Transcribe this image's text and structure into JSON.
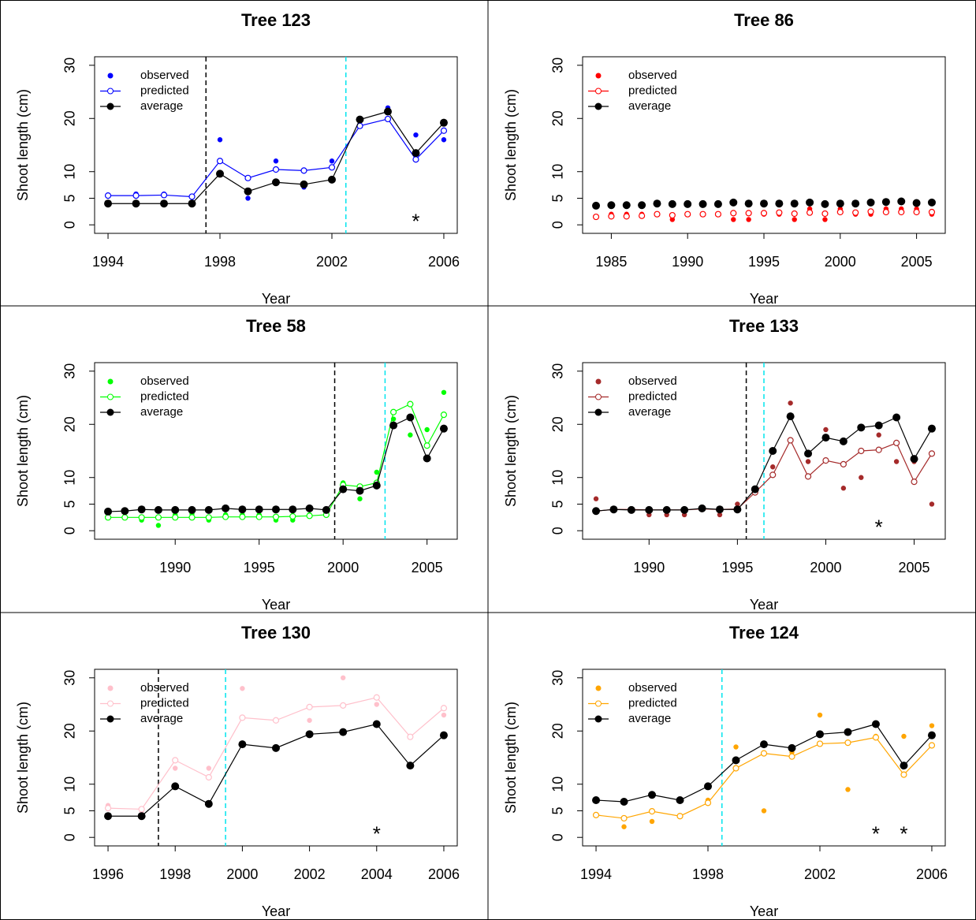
{
  "chart_data": [
    {
      "type": "line",
      "title": "Tree  123",
      "x_label": "Year",
      "y_label": "Shoot length (cm)",
      "x": [
        1994,
        1995,
        1996,
        1997,
        1998,
        1999,
        2000,
        2001,
        2002,
        2003,
        2004,
        2005,
        2006
      ],
      "series": [
        {
          "name": "observed",
          "color": "#0000ff",
          "values": [
            5.6,
            5.8,
            5.8,
            5.2,
            16,
            5,
            12,
            7.1,
            12,
            19.5,
            22,
            16.9,
            16
          ]
        },
        {
          "name": "predicted",
          "color": "#0000ff",
          "values": [
            5.5,
            5.5,
            5.6,
            5.3,
            12,
            8.8,
            10.4,
            10.2,
            10.8,
            18.6,
            19.9,
            12.3,
            17.7
          ]
        },
        {
          "name": "average",
          "color": "#000000",
          "values": [
            4,
            4,
            4,
            4,
            9.6,
            6.3,
            8,
            7.6,
            8.5,
            19.8,
            21.3,
            13.5,
            19.2
          ]
        }
      ],
      "xlim": [
        1993.52,
        2006.48
      ],
      "ylim": [
        -1.6,
        31.6
      ],
      "xticks": [
        1994,
        1998,
        2002,
        2006
      ],
      "yticks": [
        0,
        5,
        10,
        20,
        30
      ],
      "vlines": [
        {
          "x": 1997.5,
          "color": "#000000"
        },
        {
          "x": 2002.5,
          "color": "#00e5ee"
        }
      ],
      "annotations": [
        {
          "text": "*",
          "x": 2005,
          "y": 1
        }
      ],
      "lines": true
    },
    {
      "type": "line",
      "title": "Tree  86",
      "x_label": "Year",
      "y_label": "Shoot length (cm)",
      "x": [
        1984,
        1985,
        1986,
        1987,
        1988,
        1989,
        1990,
        1991,
        1992,
        1993,
        1994,
        1995,
        1996,
        1997,
        1998,
        1999,
        2000,
        2001,
        2002,
        2003,
        2004,
        2005,
        2006
      ],
      "series": [
        {
          "name": "observed",
          "color": "#ff0000",
          "values": [
            3.8,
            2,
            2,
            2,
            2,
            1,
            2,
            2,
            2,
            1,
            1,
            2,
            2,
            1,
            3,
            1,
            3,
            2,
            2,
            3,
            3,
            3,
            2
          ]
        },
        {
          "name": "predicted",
          "color": "#ff0000",
          "values": [
            1.5,
            1.6,
            1.6,
            1.7,
            2,
            1.8,
            2,
            2,
            2,
            2.2,
            2.2,
            2.2,
            2.3,
            2.1,
            2.3,
            2.1,
            2.4,
            2.3,
            2.5,
            2.4,
            2.4,
            2.4,
            2.4
          ]
        },
        {
          "name": "average",
          "color": "#000000",
          "values": [
            3.6,
            3.7,
            3.7,
            3.7,
            4,
            3.9,
            3.9,
            3.9,
            3.9,
            4.2,
            4,
            4,
            4,
            4,
            4.2,
            3.9,
            4,
            4,
            4.2,
            4.3,
            4.4,
            4.1,
            4.2
          ]
        }
      ],
      "xlim": [
        1983.12,
        2006.88
      ],
      "ylim": [
        -1.6,
        31.6
      ],
      "xticks": [
        1985,
        1990,
        1995,
        2000,
        2005
      ],
      "yticks": [
        0,
        5,
        10,
        20,
        30
      ],
      "vlines": [],
      "annotations": [],
      "lines": false
    },
    {
      "type": "line",
      "title": "Tree  58",
      "x_label": "Year",
      "y_label": "Shoot length (cm)",
      "x": [
        1986,
        1987,
        1988,
        1989,
        1990,
        1991,
        1992,
        1993,
        1994,
        1995,
        1996,
        1997,
        1998,
        1999,
        2000,
        2001,
        2002,
        2003,
        2004,
        2005,
        2006
      ],
      "series": [
        {
          "name": "observed",
          "color": "#00ff00",
          "values": [
            3.6,
            3.5,
            2,
            1,
            3,
            3.2,
            2,
            3,
            3,
            3,
            2,
            2,
            3,
            3,
            9,
            6,
            11,
            21,
            18,
            19,
            26
          ]
        },
        {
          "name": "predicted",
          "color": "#00ff00",
          "values": [
            2.5,
            2.5,
            2.5,
            2.5,
            2.5,
            2.5,
            2.5,
            2.6,
            2.6,
            2.6,
            2.6,
            2.7,
            2.8,
            3,
            8.6,
            8.3,
            9,
            22.3,
            23.8,
            16,
            21.8
          ]
        },
        {
          "name": "average",
          "color": "#000000",
          "values": [
            3.6,
            3.7,
            4,
            3.9,
            3.9,
            3.9,
            3.9,
            4.2,
            4,
            4,
            4,
            4,
            4.2,
            3.9,
            7.8,
            7.5,
            8.5,
            19.8,
            21.3,
            13.6,
            19.2
          ]
        }
      ],
      "xlim": [
        1985.2,
        2006.8
      ],
      "ylim": [
        -1.6,
        31.6
      ],
      "xticks": [
        1990,
        1995,
        2000,
        2005
      ],
      "yticks": [
        0,
        5,
        10,
        20,
        30
      ],
      "vlines": [
        {
          "x": 1999.5,
          "color": "#000000"
        },
        {
          "x": 2002.5,
          "color": "#00e5ee"
        }
      ],
      "annotations": [],
      "lines": true
    },
    {
      "type": "line",
      "title": "Tree  133",
      "x_label": "Year",
      "y_label": "Shoot length (cm)",
      "x": [
        1987,
        1988,
        1989,
        1990,
        1991,
        1992,
        1993,
        1994,
        1995,
        1996,
        1997,
        1998,
        1999,
        2000,
        2001,
        2002,
        2003,
        2004,
        2005,
        2006
      ],
      "series": [
        {
          "name": "observed",
          "color": "#a52a2a",
          "values": [
            6,
            4,
            4,
            3,
            3,
            3,
            4,
            3,
            5,
            8,
            12,
            24,
            13,
            19,
            8,
            10,
            18,
            13,
            13,
            5
          ]
        },
        {
          "name": "predicted",
          "color": "#a52a2a",
          "values": [
            3.7,
            4,
            4,
            3.9,
            3.9,
            3.9,
            4.1,
            4,
            4.1,
            7.2,
            10.5,
            17,
            10.2,
            13.2,
            12.5,
            15,
            15.2,
            16.5,
            9.2,
            14.5
          ]
        },
        {
          "name": "average",
          "color": "#000000",
          "values": [
            3.7,
            4,
            3.9,
            3.9,
            3.9,
            3.9,
            4.2,
            4,
            4,
            7.8,
            15,
            21.5,
            14.5,
            17.5,
            16.8,
            19.4,
            19.8,
            21.3,
            13.5,
            19.2
          ]
        }
      ],
      "xlim": [
        1986.24,
        2006.76
      ],
      "ylim": [
        -1.6,
        31.6
      ],
      "xticks": [
        1990,
        1995,
        2000,
        2005
      ],
      "yticks": [
        0,
        5,
        10,
        20,
        30
      ],
      "vlines": [
        {
          "x": 1995.5,
          "color": "#000000"
        },
        {
          "x": 1996.5,
          "color": "#00e5ee"
        }
      ],
      "annotations": [
        {
          "text": "*",
          "x": 2003,
          "y": 1
        }
      ],
      "lines": true
    },
    {
      "type": "line",
      "title": "Tree  130",
      "x_label": "Year",
      "y_label": "Shoot length (cm)",
      "x": [
        1996,
        1997,
        1998,
        1999,
        2000,
        2001,
        2002,
        2003,
        2004,
        2005,
        2006
      ],
      "series": [
        {
          "name": "observed",
          "color": "#ffc0cb",
          "values": [
            6,
            5,
            13,
            13,
            28,
            22,
            22,
            30,
            25,
            13.6,
            23
          ]
        },
        {
          "name": "predicted",
          "color": "#ffc0cb",
          "values": [
            5.5,
            5.3,
            14.5,
            11.3,
            22.5,
            22,
            24.5,
            24.8,
            26.3,
            18.9,
            24.3
          ]
        },
        {
          "name": "average",
          "color": "#000000",
          "values": [
            4,
            4,
            9.6,
            6.3,
            17.5,
            16.8,
            19.4,
            19.8,
            21.3,
            13.5,
            19.2
          ]
        }
      ],
      "xlim": [
        1995.6,
        2006.4
      ],
      "ylim": [
        -1.6,
        31.6
      ],
      "xticks": [
        1996,
        1998,
        2000,
        2002,
        2004,
        2006
      ],
      "yticks": [
        0,
        5,
        10,
        20,
        30
      ],
      "vlines": [
        {
          "x": 1997.5,
          "color": "#000000"
        },
        {
          "x": 1999.5,
          "color": "#00e5ee"
        }
      ],
      "annotations": [
        {
          "text": "*",
          "x": 2004,
          "y": 1
        }
      ],
      "lines": true
    },
    {
      "type": "line",
      "title": "Tree  124",
      "x_label": "Year",
      "y_label": "Shoot length (cm)",
      "x": [
        1994,
        1995,
        1996,
        1997,
        1998,
        1999,
        2000,
        2001,
        2002,
        2003,
        2004,
        2005,
        2006
      ],
      "series": [
        {
          "name": "observed",
          "color": "#ffa500",
          "values": [
            7,
            2,
            3,
            4,
            7,
            17,
            5,
            16,
            23,
            9,
            19,
            19,
            21
          ]
        },
        {
          "name": "predicted",
          "color": "#ffa500",
          "values": [
            4.2,
            3.6,
            4.9,
            4,
            6.5,
            13,
            15.8,
            15.2,
            17.6,
            17.8,
            18.8,
            11.8,
            17.3
          ]
        },
        {
          "name": "average",
          "color": "#000000",
          "values": [
            7,
            6.7,
            8,
            7,
            9.6,
            14.5,
            17.5,
            16.8,
            19.4,
            19.8,
            21.3,
            13.5,
            19.2
          ]
        }
      ],
      "xlim": [
        1993.52,
        2006.48
      ],
      "ylim": [
        -1.6,
        31.6
      ],
      "xticks": [
        1994,
        1998,
        2002,
        2006
      ],
      "yticks": [
        0,
        5,
        10,
        20,
        30
      ],
      "vlines": [
        {
          "x": 1998.5,
          "color": "#00e5ee"
        }
      ],
      "annotations": [
        {
          "text": "*",
          "x": 2004,
          "y": 1
        },
        {
          "text": "*",
          "x": 2005,
          "y": 1
        }
      ],
      "lines": true
    }
  ]
}
